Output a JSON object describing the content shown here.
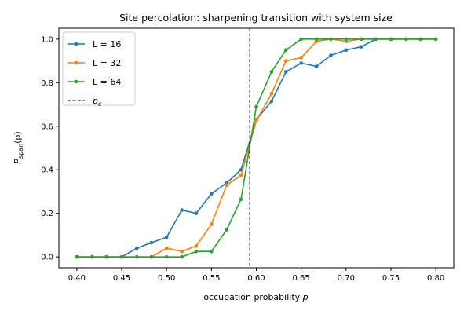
{
  "chart_data": {
    "type": "line",
    "title": "Site percolation: sharpening transition with system size",
    "xlabel": "occupation probability p",
    "ylabel": "P_span(p)",
    "xlim": [
      0.38,
      0.82
    ],
    "ylim": [
      -0.05,
      1.05
    ],
    "xticks": [
      "0.40",
      "0.45",
      "0.50",
      "0.55",
      "0.60",
      "0.65",
      "0.70",
      "0.75",
      "0.80"
    ],
    "yticks": [
      "0.0",
      "0.2",
      "0.4",
      "0.6",
      "0.8",
      "1.0"
    ],
    "x": [
      0.4,
      0.417,
      0.433,
      0.45,
      0.467,
      0.483,
      0.5,
      0.517,
      0.533,
      0.55,
      0.567,
      0.583,
      0.6,
      0.617,
      0.633,
      0.65,
      0.667,
      0.683,
      0.7,
      0.717,
      0.733,
      0.75,
      0.767,
      0.783,
      0.8
    ],
    "series": [
      {
        "name": "L = 16",
        "color": "#1f77b4",
        "values": [
          0.0,
          0.0,
          0.0,
          0.0,
          0.04,
          0.065,
          0.09,
          0.215,
          0.2,
          0.29,
          0.34,
          0.4,
          0.63,
          0.715,
          0.85,
          0.89,
          0.875,
          0.925,
          0.95,
          0.965,
          1.0,
          1.0,
          1.0,
          1.0,
          1.0
        ]
      },
      {
        "name": "L = 32",
        "color": "#ff7f0e",
        "values": [
          0.0,
          0.0,
          0.0,
          0.0,
          0.0,
          0.0,
          0.04,
          0.025,
          0.05,
          0.15,
          0.33,
          0.375,
          0.625,
          0.75,
          0.9,
          0.915,
          0.99,
          1.0,
          0.99,
          1.0,
          1.0,
          1.0,
          1.0,
          1.0,
          1.0
        ]
      },
      {
        "name": "L = 64",
        "color": "#2ca02c",
        "values": [
          0.0,
          0.0,
          0.0,
          0.0,
          0.0,
          0.0,
          0.0,
          0.0,
          0.025,
          0.025,
          0.125,
          0.265,
          0.69,
          0.85,
          0.95,
          1.0,
          1.0,
          1.0,
          1.0,
          1.0,
          1.0,
          1.0,
          1.0,
          1.0,
          1.0
        ]
      }
    ],
    "critical_line": {
      "name": "p_c",
      "x": 0.5927,
      "style": "dashed",
      "color": "#000000"
    },
    "legend": {
      "placement": "top-left",
      "entries": [
        "L = 16",
        "L = 32",
        "L = 64",
        "p_c"
      ]
    },
    "grid": false
  }
}
